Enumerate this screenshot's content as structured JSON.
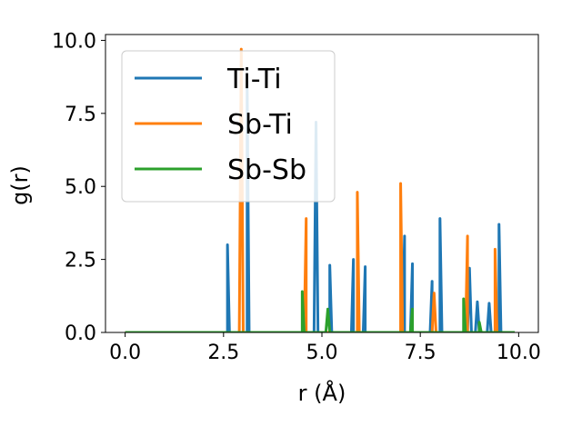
{
  "chart_data": {
    "type": "line",
    "xlabel": "r (Å)",
    "ylabel": "g(r)",
    "xlim": [
      -0.5,
      10.5
    ],
    "ylim": [
      0.0,
      10.2
    ],
    "xticks": [
      "0.0",
      "2.5",
      "5.0",
      "7.5",
      "10.0"
    ],
    "yticks": [
      "0.0",
      "2.5",
      "5.0",
      "7.5",
      "10.0"
    ],
    "grid": false,
    "legend_position": "upper-left",
    "series": [
      {
        "name": "Ti-Ti",
        "color": "#1f77b4",
        "peaks": [
          [
            2.6,
            3.0
          ],
          [
            3.1,
            8.6
          ],
          [
            4.85,
            7.2
          ],
          [
            5.2,
            2.3
          ],
          [
            5.8,
            2.5
          ],
          [
            6.1,
            2.25
          ],
          [
            7.1,
            3.3
          ],
          [
            7.3,
            2.35
          ],
          [
            7.8,
            1.75
          ],
          [
            8.0,
            3.9
          ],
          [
            8.75,
            2.2
          ],
          [
            8.95,
            1.05
          ],
          [
            9.25,
            1.0
          ],
          [
            9.5,
            3.7
          ]
        ]
      },
      {
        "name": "Sb-Ti",
        "color": "#ff7f0e",
        "peaks": [
          [
            2.95,
            9.7
          ],
          [
            4.6,
            3.9
          ],
          [
            5.9,
            4.8
          ],
          [
            7.0,
            5.1
          ],
          [
            7.85,
            1.35
          ],
          [
            8.7,
            3.3
          ],
          [
            9.4,
            2.85
          ]
        ]
      },
      {
        "name": "Sb-Sb",
        "color": "#2ca02c",
        "peaks": [
          [
            4.5,
            1.4
          ],
          [
            5.15,
            0.8
          ],
          [
            7.3,
            0.8
          ],
          [
            8.6,
            1.15
          ],
          [
            9.0,
            0.35
          ]
        ]
      }
    ],
    "x_range": [
      0.0,
      9.9
    ],
    "bin_width": 0.1
  }
}
